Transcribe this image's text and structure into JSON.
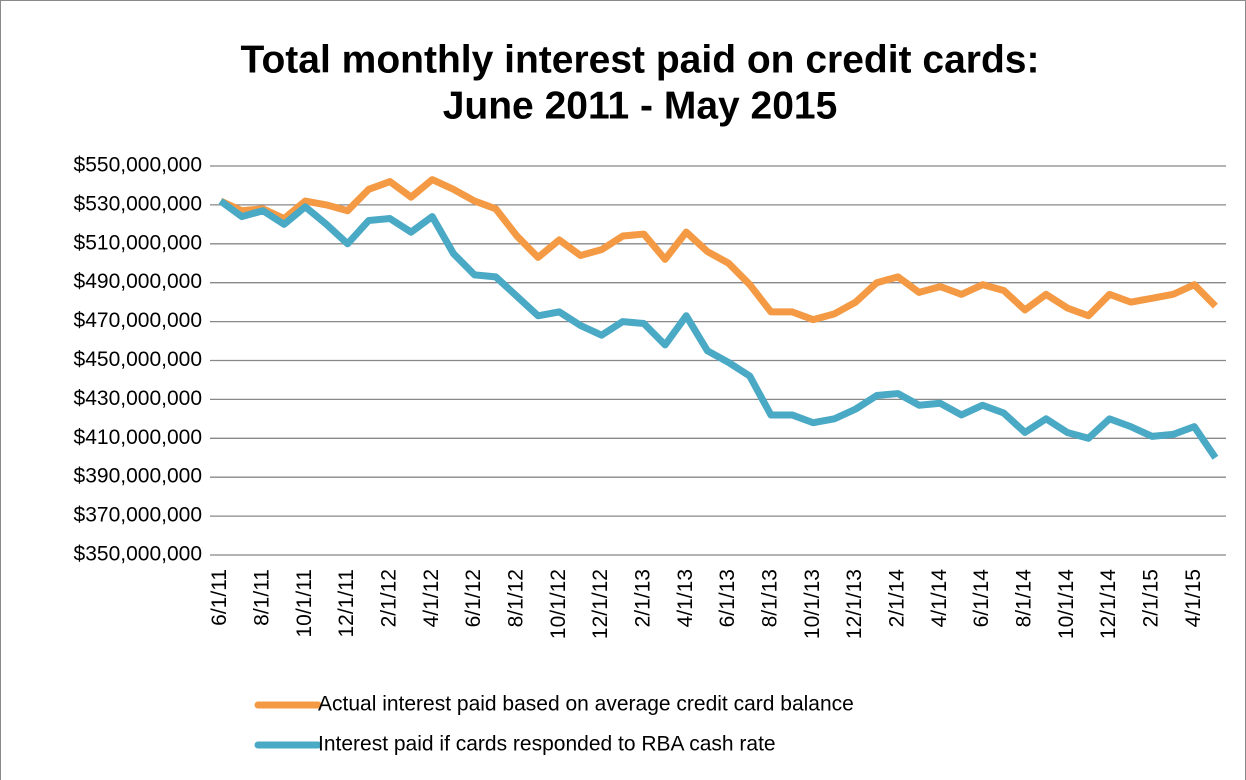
{
  "chart_data": {
    "type": "line",
    "title": "Total monthly interest paid on credit cards:",
    "subtitle": "June 2011 - May 2015",
    "categories": [
      "6/1/11",
      null,
      "8/1/11",
      null,
      "10/1/11",
      null,
      "12/1/11",
      null,
      "2/1/12",
      null,
      "4/1/12",
      null,
      "6/1/12",
      null,
      "8/1/12",
      null,
      "10/1/12",
      null,
      "12/1/12",
      null,
      "2/1/13",
      null,
      "4/1/13",
      null,
      "6/1/13",
      null,
      "8/1/13",
      null,
      "10/1/13",
      null,
      "12/1/13",
      null,
      "2/1/14",
      null,
      "4/1/14",
      null,
      "6/1/14",
      null,
      "8/1/14",
      null,
      "10/1/14",
      null,
      "12/1/14",
      null,
      "2/1/15",
      null,
      "4/1/15",
      null
    ],
    "series": [
      {
        "name": "Actual interest paid based on average credit card balance",
        "color": "#f59a44",
        "values": [
          532000000,
          527000000,
          528000000,
          523000000,
          532000000,
          530000000,
          527000000,
          538000000,
          542000000,
          534000000,
          543000000,
          538000000,
          532000000,
          528000000,
          514000000,
          503000000,
          512000000,
          504000000,
          507000000,
          514000000,
          515000000,
          502000000,
          516000000,
          506000000,
          500000000,
          489000000,
          475000000,
          475000000,
          471000000,
          474000000,
          480000000,
          490000000,
          493000000,
          485000000,
          488000000,
          484000000,
          489000000,
          486000000,
          476000000,
          484000000,
          477000000,
          473000000,
          484000000,
          480000000,
          482000000,
          484000000,
          489000000,
          478000000
        ]
      },
      {
        "name": "Interest paid if cards responded to RBA cash rate",
        "color": "#4aa9c4",
        "values": [
          532000000,
          524000000,
          527000000,
          520000000,
          529000000,
          520000000,
          510000000,
          522000000,
          523000000,
          516000000,
          524000000,
          505000000,
          494000000,
          493000000,
          483000000,
          473000000,
          475000000,
          468000000,
          463000000,
          470000000,
          469000000,
          458000000,
          473000000,
          455000000,
          449000000,
          442000000,
          422000000,
          422000000,
          418000000,
          420000000,
          425000000,
          432000000,
          433000000,
          427000000,
          428000000,
          422000000,
          427000000,
          423000000,
          413000000,
          420000000,
          413000000,
          410000000,
          420000000,
          416000000,
          411000000,
          412000000,
          416000000,
          400000000
        ]
      }
    ],
    "ylim": [
      350000000,
      550000000
    ],
    "yticks": [
      {
        "value": 350000000,
        "label": "$350,000,000"
      },
      {
        "value": 370000000,
        "label": "$370,000,000"
      },
      {
        "value": 390000000,
        "label": "$390,000,000"
      },
      {
        "value": 410000000,
        "label": "$410,000,000"
      },
      {
        "value": 430000000,
        "label": "$430,000,000"
      },
      {
        "value": 450000000,
        "label": "$450,000,000"
      },
      {
        "value": 470000000,
        "label": "$470,000,000"
      },
      {
        "value": 490000000,
        "label": "$490,000,000"
      },
      {
        "value": 510000000,
        "label": "$510,000,000"
      },
      {
        "value": 530000000,
        "label": "$530,000,000"
      },
      {
        "value": 550000000,
        "label": "$550,000,000"
      }
    ],
    "grid": true,
    "legend": "bottom"
  }
}
